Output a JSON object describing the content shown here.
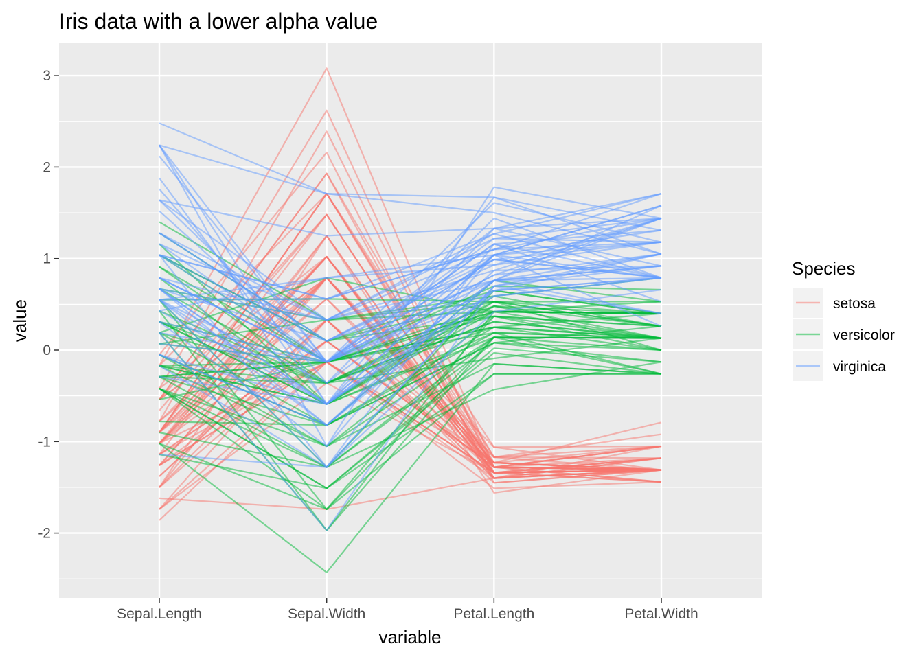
{
  "chart_data": {
    "type": "line",
    "title": "Iris data with a lower alpha value",
    "xlabel": "variable",
    "ylabel": "value",
    "categories": [
      "Sepal.Length",
      "Sepal.Width",
      "Petal.Length",
      "Petal.Width"
    ],
    "ylim": [
      -2.5,
      3.3
    ],
    "yticks": [
      -2,
      -1,
      0,
      1,
      2,
      3
    ],
    "grid": true,
    "legend": {
      "title": "Species",
      "position": "right",
      "entries": [
        {
          "name": "setosa",
          "color": "#F8766D"
        },
        {
          "name": "versicolor",
          "color": "#00BA38"
        },
        {
          "name": "virginica",
          "color": "#619CFF"
        }
      ]
    },
    "line_alpha": 0.5,
    "series": [
      {
        "name": "setosa",
        "color": "#F8766D",
        "lines": [
          [
            -0.9,
            1.02,
            -1.34,
            -1.31
          ],
          [
            -1.14,
            -0.13,
            -1.34,
            -1.31
          ],
          [
            -1.38,
            0.33,
            -1.4,
            -1.31
          ],
          [
            -1.5,
            0.1,
            -1.28,
            -1.31
          ],
          [
            -1.02,
            1.25,
            -1.34,
            -1.31
          ],
          [
            -0.54,
            1.93,
            -1.17,
            -1.05
          ],
          [
            -1.5,
            0.79,
            -1.34,
            -1.18
          ],
          [
            -1.02,
            0.79,
            -1.28,
            -1.31
          ],
          [
            -1.74,
            -0.36,
            -1.34,
            -1.31
          ],
          [
            -1.14,
            0.1,
            -1.28,
            -1.44
          ],
          [
            -0.54,
            1.48,
            -1.28,
            -1.31
          ],
          [
            -1.26,
            0.79,
            -1.23,
            -1.31
          ],
          [
            -1.26,
            -0.13,
            -1.34,
            -1.44
          ],
          [
            -1.86,
            -0.13,
            -1.51,
            -1.44
          ],
          [
            -0.05,
            2.16,
            -1.45,
            -1.31
          ],
          [
            -0.17,
            3.08,
            -1.28,
            -1.05
          ],
          [
            -0.54,
            1.93,
            -1.4,
            -1.05
          ],
          [
            -0.9,
            1.02,
            -1.34,
            -1.18
          ],
          [
            -0.17,
            1.71,
            -1.17,
            -1.18
          ],
          [
            -0.9,
            1.71,
            -1.28,
            -1.18
          ],
          [
            -0.54,
            0.79,
            -1.17,
            -1.31
          ],
          [
            -0.9,
            1.48,
            -1.28,
            -1.05
          ],
          [
            -1.5,
            1.25,
            -1.56,
            -1.31
          ],
          [
            -0.9,
            0.56,
            -1.17,
            -0.92
          ],
          [
            -1.26,
            0.79,
            -1.06,
            -1.31
          ],
          [
            -1.02,
            -0.13,
            -1.23,
            -1.31
          ],
          [
            -1.02,
            0.79,
            -1.23,
            -1.05
          ],
          [
            -0.78,
            1.02,
            -1.28,
            -1.31
          ],
          [
            -0.78,
            0.79,
            -1.34,
            -1.31
          ],
          [
            -1.38,
            0.33,
            -1.23,
            -1.31
          ],
          [
            -1.26,
            0.1,
            -1.23,
            -1.31
          ],
          [
            -0.54,
            0.79,
            -1.28,
            -1.05
          ],
          [
            -0.78,
            2.39,
            -1.28,
            -1.44
          ],
          [
            -0.42,
            2.62,
            -1.34,
            -1.31
          ],
          [
            -1.14,
            0.1,
            -1.28,
            -1.31
          ],
          [
            -1.02,
            0.33,
            -1.45,
            -1.31
          ],
          [
            -0.42,
            1.02,
            -1.4,
            -1.31
          ],
          [
            -1.14,
            1.25,
            -1.34,
            -1.44
          ],
          [
            -1.74,
            -0.13,
            -1.4,
            -1.31
          ],
          [
            -0.9,
            0.79,
            -1.28,
            -1.31
          ],
          [
            -1.02,
            1.02,
            -1.4,
            -1.18
          ],
          [
            -1.62,
            -1.74,
            -1.4,
            -1.18
          ],
          [
            -1.74,
            0.33,
            -1.4,
            -1.31
          ],
          [
            -1.02,
            1.02,
            -1.23,
            -0.79
          ],
          [
            -0.9,
            1.71,
            -1.06,
            -1.05
          ],
          [
            -1.26,
            -0.13,
            -1.34,
            -1.18
          ],
          [
            -0.9,
            1.71,
            -1.23,
            -1.31
          ],
          [
            -1.5,
            0.33,
            -1.34,
            -1.31
          ],
          [
            -0.66,
            1.48,
            -1.28,
            -1.31
          ],
          [
            -1.02,
            0.56,
            -1.34,
            -1.31
          ]
        ]
      },
      {
        "name": "versicolor",
        "color": "#00BA38",
        "lines": [
          [
            1.4,
            0.33,
            0.53,
            0.26
          ],
          [
            0.67,
            0.33,
            0.42,
            0.4
          ],
          [
            1.28,
            0.1,
            0.65,
            0.4
          ],
          [
            -0.42,
            -1.74,
            0.14,
            0.13
          ],
          [
            0.79,
            -0.59,
            0.48,
            0.4
          ],
          [
            -0.17,
            -0.59,
            0.42,
            0.13
          ],
          [
            0.55,
            0.56,
            0.53,
            0.53
          ],
          [
            -1.14,
            -1.51,
            -0.26,
            -0.26
          ],
          [
            0.91,
            -0.36,
            0.48,
            0.13
          ],
          [
            -0.78,
            -0.82,
            0.08,
            0.26
          ],
          [
            -1.02,
            -2.43,
            -0.15,
            -0.26
          ],
          [
            0.07,
            -0.13,
            0.25,
            0.4
          ],
          [
            0.19,
            -1.97,
            0.14,
            -0.26
          ],
          [
            0.31,
            -0.36,
            0.53,
            0.26
          ],
          [
            -0.29,
            -0.36,
            -0.09,
            0.13
          ],
          [
            1.04,
            0.1,
            0.37,
            0.26
          ],
          [
            -0.29,
            -0.13,
            0.42,
            0.4
          ],
          [
            -0.05,
            -0.82,
            0.19,
            -0.26
          ],
          [
            0.43,
            -1.97,
            0.42,
            0.4
          ],
          [
            -0.29,
            -1.28,
            0.08,
            -0.13
          ],
          [
            0.07,
            0.33,
            0.59,
            0.79
          ],
          [
            0.31,
            -0.59,
            0.14,
            0.13
          ],
          [
            0.55,
            -1.28,
            0.65,
            0.4
          ],
          [
            0.31,
            -0.59,
            0.53,
            0.0
          ],
          [
            0.67,
            -0.36,
            0.31,
            0.13
          ],
          [
            0.91,
            -0.13,
            0.37,
            0.26
          ],
          [
            1.16,
            -0.59,
            0.59,
            0.26
          ],
          [
            1.04,
            -0.13,
            0.7,
            0.66
          ],
          [
            0.19,
            -0.36,
            0.42,
            0.4
          ],
          [
            -0.17,
            -1.05,
            -0.15,
            -0.26
          ],
          [
            -0.42,
            -1.51,
            0.02,
            -0.13
          ],
          [
            -0.42,
            -1.51,
            -0.03,
            -0.26
          ],
          [
            -0.05,
            -0.82,
            0.08,
            0.0
          ],
          [
            0.19,
            -0.82,
            0.76,
            0.53
          ],
          [
            -0.54,
            -0.13,
            0.42,
            0.4
          ],
          [
            0.19,
            0.79,
            0.42,
            0.53
          ],
          [
            1.04,
            0.1,
            0.53,
            0.4
          ],
          [
            0.55,
            -1.74,
            0.37,
            0.13
          ],
          [
            -0.29,
            -0.13,
            0.19,
            0.13
          ],
          [
            -0.42,
            -1.28,
            0.14,
            0.13
          ],
          [
            -0.42,
            -1.05,
            0.37,
            0.0
          ],
          [
            0.31,
            -0.13,
            0.48,
            0.26
          ],
          [
            -0.05,
            -1.05,
            0.14,
            0.0
          ],
          [
            -1.02,
            -1.74,
            -0.26,
            -0.26
          ],
          [
            -0.29,
            -0.82,
            0.25,
            0.13
          ],
          [
            -0.17,
            -0.13,
            0.25,
            0.0
          ],
          [
            -0.17,
            -0.36,
            0.25,
            0.13
          ],
          [
            0.43,
            -0.36,
            0.31,
            0.13
          ],
          [
            -0.9,
            -1.28,
            -0.43,
            -0.13
          ],
          [
            -0.17,
            -0.59,
            0.19,
            0.13
          ]
        ]
      },
      {
        "name": "virginica",
        "color": "#619CFF",
        "lines": [
          [
            0.55,
            0.56,
            1.27,
            1.71
          ],
          [
            -0.05,
            -0.82,
            0.76,
            0.92
          ],
          [
            1.52,
            -0.13,
            1.22,
            1.18
          ],
          [
            0.55,
            -0.36,
            1.04,
            0.79
          ],
          [
            0.79,
            -0.13,
            1.16,
            1.31
          ],
          [
            2.12,
            -0.13,
            1.61,
            1.18
          ],
          [
            -1.14,
            -1.28,
            0.42,
            0.66
          ],
          [
            1.76,
            -0.36,
            1.44,
            0.79
          ],
          [
            1.04,
            -1.28,
            1.16,
            0.79
          ],
          [
            1.64,
            1.25,
            1.33,
            1.71
          ],
          [
            0.79,
            0.33,
            0.76,
            1.05
          ],
          [
            0.67,
            -0.82,
            0.87,
            0.92
          ],
          [
            1.16,
            -0.13,
            0.99,
            1.18
          ],
          [
            -0.17,
            -1.28,
            0.7,
            1.05
          ],
          [
            -0.05,
            -0.59,
            0.76,
            1.58
          ],
          [
            0.67,
            0.33,
            0.87,
            1.44
          ],
          [
            0.79,
            -0.13,
            0.99,
            0.79
          ],
          [
            2.24,
            1.71,
            1.67,
            1.31
          ],
          [
            2.24,
            -1.05,
            1.78,
            1.44
          ],
          [
            0.19,
            -1.97,
            0.7,
            0.4
          ],
          [
            1.28,
            0.33,
            1.1,
            1.44
          ],
          [
            -0.29,
            -0.59,
            0.65,
            1.05
          ],
          [
            2.24,
            -0.59,
            1.67,
            1.05
          ],
          [
            0.55,
            -0.82,
            0.65,
            0.79
          ],
          [
            1.04,
            0.56,
            1.1,
            1.18
          ],
          [
            1.64,
            0.33,
            1.27,
            0.79
          ],
          [
            0.43,
            -0.59,
            0.59,
            0.79
          ],
          [
            0.31,
            -0.13,
            0.65,
            0.79
          ],
          [
            0.67,
            -0.59,
            1.04,
            1.18
          ],
          [
            1.64,
            -0.13,
            1.16,
            0.53
          ],
          [
            1.88,
            -0.59,
            1.33,
            0.92
          ],
          [
            2.48,
            1.71,
            1.5,
            1.05
          ],
          [
            0.67,
            -0.59,
            1.04,
            1.31
          ],
          [
            0.55,
            -0.59,
            0.76,
            0.4
          ],
          [
            0.31,
            -1.05,
            1.04,
            0.26
          ],
          [
            2.24,
            -0.13,
            1.33,
            1.44
          ],
          [
            0.55,
            0.79,
            1.04,
            1.58
          ],
          [
            0.67,
            0.1,
            0.99,
            0.79
          ],
          [
            0.19,
            -0.13,
            0.59,
            0.79
          ],
          [
            1.28,
            0.1,
            0.93,
            1.18
          ],
          [
            1.04,
            0.1,
            1.04,
            1.58
          ],
          [
            1.28,
            0.1,
            0.76,
            1.44
          ],
          [
            -0.05,
            -0.82,
            0.76,
            0.92
          ],
          [
            1.16,
            0.33,
            1.22,
            1.44
          ],
          [
            1.04,
            0.56,
            1.1,
            1.71
          ],
          [
            1.04,
            -0.13,
            0.82,
            1.44
          ],
          [
            0.55,
            -1.28,
            0.7,
            0.92
          ],
          [
            0.79,
            -0.13,
            0.82,
            1.05
          ],
          [
            0.43,
            0.79,
            0.93,
            1.44
          ],
          [
            0.07,
            -0.13,
            0.76,
            0.79
          ]
        ]
      }
    ]
  }
}
